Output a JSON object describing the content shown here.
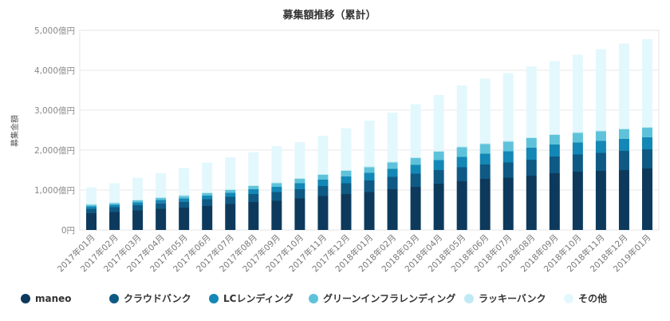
{
  "chart_data": {
    "type": "bar",
    "stacked": true,
    "title": "募集額推移（累計）",
    "ylabel": "募集金額",
    "xlabel": "",
    "ylim": [
      0,
      5000
    ],
    "yticks": [
      0,
      1000,
      2000,
      3000,
      4000,
      5000
    ],
    "ytick_labels": [
      "0円",
      "1,000億円",
      "2,000億円",
      "3,000億円",
      "4,000億円",
      "5,000億円"
    ],
    "categories": [
      "2017年01月",
      "2017年02月",
      "2017年03月",
      "2017年04月",
      "2017年05月",
      "2017年06月",
      "2017年07月",
      "2017年08月",
      "2017年09月",
      "2017年10月",
      "2017年11月",
      "2017年12月",
      "2018年01月",
      "2018年02月",
      "2018年03月",
      "2018年04月",
      "2018年05月",
      "2018年06月",
      "2018年07月",
      "2018年08月",
      "2018年09月",
      "2018年10月",
      "2018年11月",
      "2018年12月",
      "2019年01月"
    ],
    "legend_position": "bottom",
    "series": [
      {
        "name": "maneo",
        "color": "#0d3a5c",
        "values": [
          420,
          450,
          490,
          530,
          560,
          600,
          650,
          700,
          730,
          790,
          850,
          900,
          950,
          1020,
          1080,
          1160,
          1220,
          1280,
          1310,
          1360,
          1420,
          1460,
          1480,
          1500,
          1540
        ]
      },
      {
        "name": "クラウドバンク",
        "color": "#0e5a84",
        "values": [
          110,
          120,
          130,
          145,
          155,
          170,
          180,
          200,
          220,
          230,
          250,
          270,
          290,
          310,
          330,
          340,
          350,
          360,
          380,
          400,
          420,
          430,
          450,
          480,
          480
        ]
      },
      {
        "name": "LCレンディング",
        "color": "#1387b5",
        "values": [
          60,
          60,
          70,
          80,
          80,
          90,
          100,
          120,
          130,
          150,
          160,
          170,
          190,
          200,
          220,
          250,
          260,
          270,
          280,
          300,
          300,
          300,
          300,
          300,
          300
        ]
      },
      {
        "name": "グリーンインフラレンディング",
        "color": "#5ec3da",
        "values": [
          40,
          40,
          50,
          50,
          60,
          60,
          70,
          80,
          90,
          110,
          120,
          140,
          140,
          160,
          170,
          210,
          240,
          240,
          240,
          240,
          240,
          240,
          240,
          240,
          240
        ]
      },
      {
        "name": "ラッキーバンク",
        "color": "#bfeaf3",
        "values": [
          20,
          20,
          20,
          20,
          20,
          20,
          20,
          20,
          20,
          20,
          20,
          20,
          20,
          20,
          20,
          20,
          20,
          20,
          20,
          20,
          20,
          20,
          20,
          20,
          20
        ]
      },
      {
        "name": "その他",
        "color": "#e3f8fc",
        "values": [
          420,
          480,
          550,
          600,
          680,
          750,
          800,
          830,
          910,
          900,
          960,
          1050,
          1150,
          1230,
          1330,
          1400,
          1530,
          1620,
          1700,
          1780,
          1830,
          1940,
          2040,
          2130,
          2200
        ]
      }
    ]
  }
}
